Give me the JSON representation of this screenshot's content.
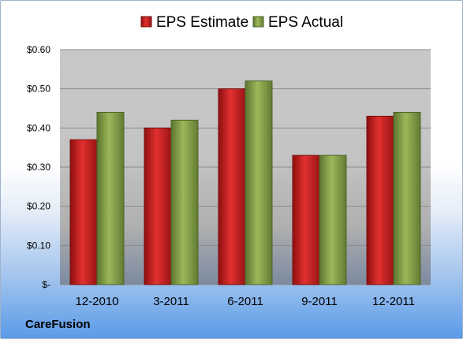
{
  "company": "CareFusion",
  "chart_data": {
    "type": "bar",
    "categories": [
      "12-2010",
      "3-2011",
      "6-2011",
      "9-2011",
      "12-2011"
    ],
    "series": [
      {
        "name": "EPS Estimate",
        "values": [
          0.37,
          0.4,
          0.5,
          0.33,
          0.43
        ],
        "color": "#cc1f1f"
      },
      {
        "name": "EPS Actual",
        "values": [
          0.44,
          0.42,
          0.52,
          0.33,
          0.44
        ],
        "color": "#8aa24a"
      }
    ],
    "yticks": [
      "$-",
      "$0.10",
      "$0.20",
      "$0.30",
      "$0.40",
      "$0.50",
      "$0.60"
    ],
    "ylim": [
      0,
      0.6
    ],
    "grid": true,
    "legend": "top"
  }
}
